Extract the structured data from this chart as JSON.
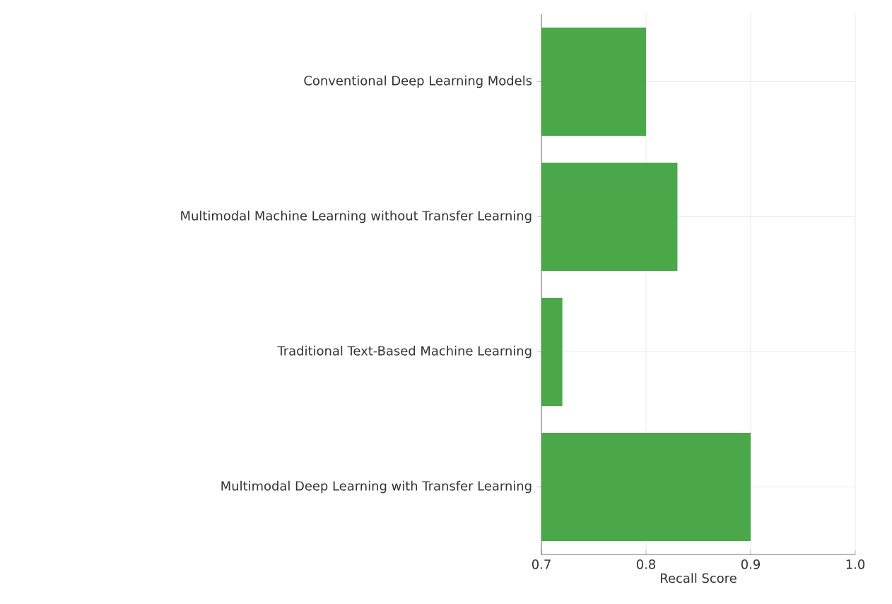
{
  "chart_data": {
    "type": "bar",
    "orientation": "horizontal",
    "xlabel": "Recall Score",
    "categories": [
      "Conventional Deep Learning Models",
      "Multimodal Machine Learning without Transfer Learning",
      "Traditional Text-Based Machine Learning",
      "Multimodal Deep Learning with Transfer Learning"
    ],
    "values": [
      0.8,
      0.83,
      0.72,
      0.9
    ],
    "color": "#4aa84a",
    "xlim": [
      0.7,
      1.0
    ],
    "xticks": [
      {
        "value": 0.7,
        "label": "0.7"
      },
      {
        "value": 0.8,
        "label": "0.8"
      },
      {
        "value": 0.9,
        "label": "0.9"
      },
      {
        "value": 1.0,
        "label": "1.0"
      }
    ],
    "grid": true
  }
}
